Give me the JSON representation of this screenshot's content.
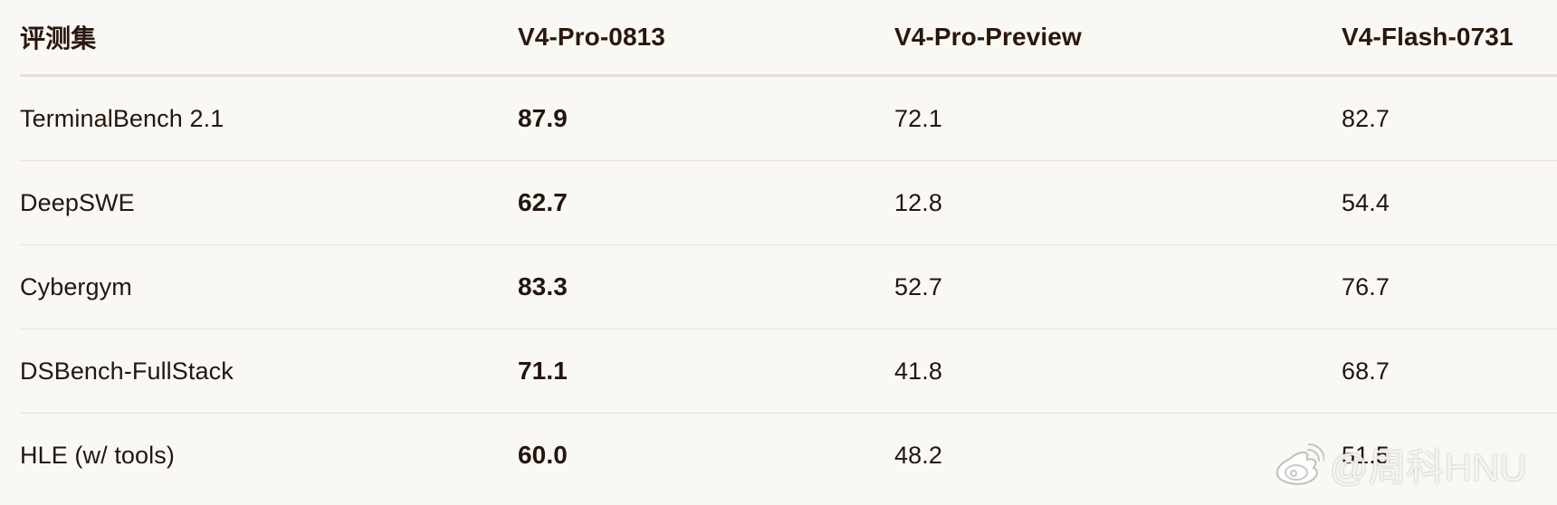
{
  "table": {
    "headers": [
      "评测集",
      "V4-Pro-0813",
      "V4-Pro-Preview",
      "V4-Flash-0731"
    ],
    "rows": [
      [
        "TerminalBench 2.1",
        "87.9",
        "72.1",
        "82.7"
      ],
      [
        "DeepSWE",
        "62.7",
        "12.8",
        "54.4"
      ],
      [
        "Cybergym",
        "83.3",
        "52.7",
        "76.7"
      ],
      [
        "DSBench-FullStack",
        "71.1",
        "41.8",
        "68.7"
      ],
      [
        "HLE (w/ tools)",
        "60.0",
        "48.2",
        "51.5"
      ]
    ]
  },
  "watermark": {
    "text": "@周科HNU",
    "icon": "weibo-icon"
  },
  "colors": {
    "background": "#faf8f4",
    "text": "#23160f",
    "divider": "#e7e2dc"
  }
}
